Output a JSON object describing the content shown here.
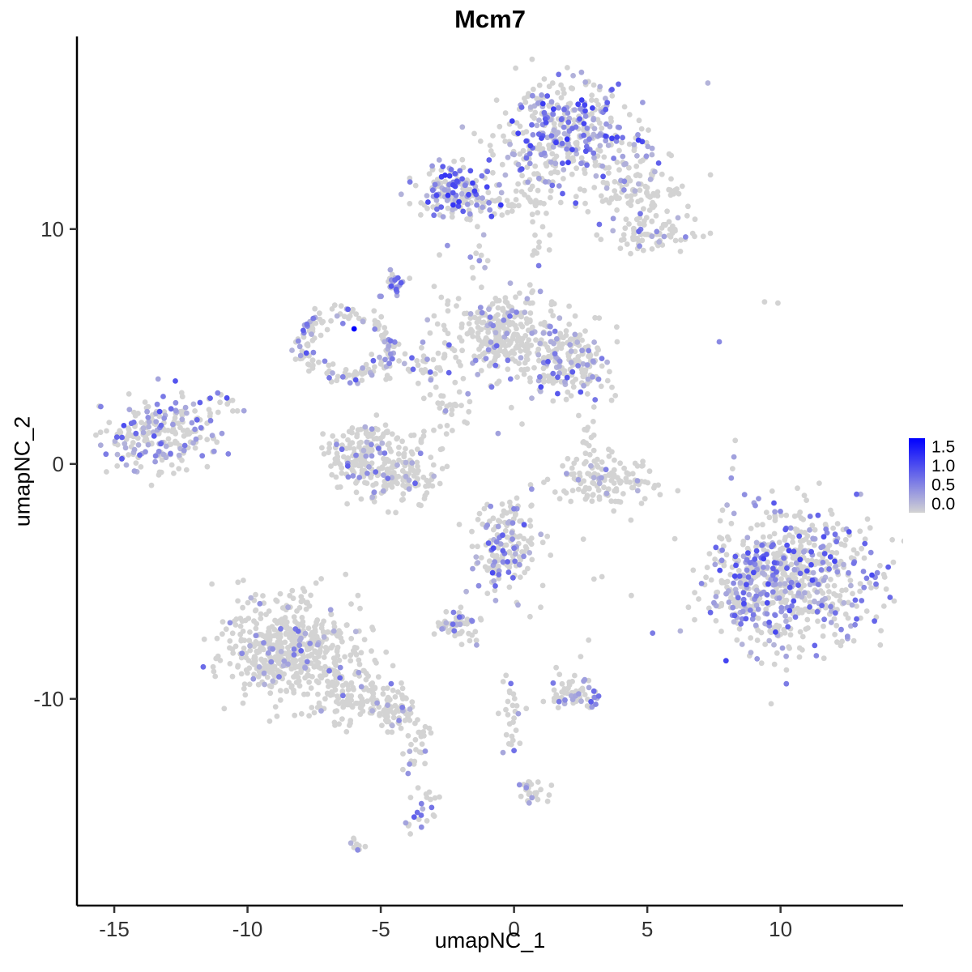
{
  "title": "Mcm7",
  "axes": {
    "x": {
      "label": "umapNC_1",
      "ticks": [
        -15,
        -10,
        -5,
        0,
        5,
        10
      ]
    },
    "y": {
      "label": "umapNC_2",
      "ticks": [
        -10,
        0,
        10
      ]
    }
  },
  "legend": {
    "ticks": [
      "1.5",
      "1.0",
      "0.5",
      "0.0"
    ],
    "vmin": 0.0,
    "vmax": 1.7,
    "color_low": "#D3D3D3",
    "color_high": "#0000FF"
  },
  "panel": {
    "background": "#FFFFFF",
    "axis_color": "#000000",
    "tick_color": "#333333"
  },
  "chart_data": {
    "type": "scatter",
    "title": "Mcm7",
    "xlabel": "umapNC_1",
    "ylabel": "umapNC_2",
    "xlim": [
      -16.4,
      14.6
    ],
    "ylim": [
      -18.8,
      18.2
    ],
    "point_radius": 3.4,
    "value_range": [
      0.0,
      1.7
    ],
    "grid": false,
    "legend_position": "right",
    "clusters": [
      {
        "name": "top-main",
        "cx": 2.0,
        "cy": 14.3,
        "sx": 1.35,
        "sy": 1.05,
        "n": 330,
        "expr_frac": 0.5,
        "vmax": 1.3
      },
      {
        "name": "top-main-fringe",
        "cx": 2.2,
        "cy": 12.6,
        "sx": 1.8,
        "sy": 0.6,
        "n": 90,
        "expr_frac": 0.25,
        "vmax": 1.0
      },
      {
        "name": "top-right-arm",
        "cx": 4.6,
        "cy": 11.5,
        "sx": 0.9,
        "sy": 0.8,
        "n": 90,
        "expr_frac": 0.18,
        "vmax": 1.0
      },
      {
        "name": "top-right-blob",
        "cx": 5.3,
        "cy": 9.7,
        "sx": 0.9,
        "sy": 0.45,
        "n": 70,
        "expr_frac": 0.15,
        "vmax": 1.0
      },
      {
        "name": "top-stem",
        "cx": 1.0,
        "cy": 10.0,
        "sx": 0.3,
        "sy": 1.0,
        "n": 18,
        "expr_frac": 0.1,
        "vmax": 0.8
      },
      {
        "name": "upper-left",
        "cx": -2.2,
        "cy": 11.6,
        "sx": 0.85,
        "sy": 0.55,
        "n": 160,
        "expr_frac": 0.5,
        "vmax": 1.3
      },
      {
        "name": "upper-mid-sparse",
        "cx": 0.2,
        "cy": 11.2,
        "sx": 1.0,
        "sy": 0.35,
        "n": 40,
        "expr_frac": 0.1,
        "vmax": 0.8
      },
      {
        "name": "upper-trail",
        "cx": -1.3,
        "cy": 9.2,
        "sx": 0.25,
        "sy": 0.8,
        "n": 12,
        "expr_frac": 0.2,
        "vmax": 0.8
      },
      {
        "name": "small-upper",
        "cx": -4.5,
        "cy": 7.6,
        "sx": 0.28,
        "sy": 0.3,
        "n": 26,
        "expr_frac": 0.6,
        "vmax": 1.1
      },
      {
        "name": "mid-left-lobe",
        "cx": -0.4,
        "cy": 5.5,
        "sx": 1.0,
        "sy": 0.85,
        "n": 290,
        "expr_frac": 0.12,
        "vmax": 0.9
      },
      {
        "name": "mid-right-lobe",
        "cx": 2.1,
        "cy": 4.3,
        "sx": 0.75,
        "sy": 0.75,
        "n": 190,
        "expr_frac": 0.3,
        "vmax": 1.1
      },
      {
        "name": "ring",
        "cx": -6.3,
        "cy": 5.1,
        "ring": true,
        "rx": 1.55,
        "ry": 1.35,
        "rw": 0.14,
        "n": 150,
        "expr_frac": 0.3,
        "vmax": 1.1
      },
      {
        "name": "ring-arm",
        "cx": -3.4,
        "cy": 4.1,
        "sx": 0.9,
        "sy": 0.5,
        "n": 50,
        "expr_frac": 0.2,
        "vmax": 1.0
      },
      {
        "name": "left",
        "cx": -13.3,
        "cy": 1.1,
        "sx": 1.05,
        "sy": 0.8,
        "n": 230,
        "expr_frac": 0.4,
        "vmax": 1.1
      },
      {
        "name": "left-trail",
        "cx": -11.0,
        "cy": 2.6,
        "sx": 0.7,
        "sy": 0.3,
        "n": 16,
        "expr_frac": 0.25,
        "vmax": 0.9
      },
      {
        "name": "center-arc-left",
        "cx": -5.8,
        "cy": 0.2,
        "sx": 0.55,
        "sy": 0.7,
        "n": 110,
        "expr_frac": 0.15,
        "vmax": 1.0
      },
      {
        "name": "center-arc-right",
        "cx": -4.3,
        "cy": -0.5,
        "sx": 0.75,
        "sy": 0.5,
        "n": 130,
        "expr_frac": 0.12,
        "vmax": 1.0
      },
      {
        "name": "center-arc-top",
        "cx": -4.9,
        "cy": 1.0,
        "sx": 1.0,
        "sy": 0.4,
        "n": 60,
        "expr_frac": 0.1,
        "vmax": 0.8
      },
      {
        "name": "mid-trail",
        "cx": -2.4,
        "cy": 2.3,
        "sx": 0.5,
        "sy": 0.5,
        "n": 25,
        "expr_frac": 0.15,
        "vmax": 0.9
      },
      {
        "name": "right-arc",
        "cx": 3.3,
        "cy": -0.7,
        "sx": 1.0,
        "sy": 0.5,
        "n": 130,
        "expr_frac": 0.08,
        "vmax": 0.8
      },
      {
        "name": "right-arc-top",
        "cx": 2.8,
        "cy": 0.9,
        "sx": 0.4,
        "sy": 0.5,
        "n": 18,
        "expr_frac": 0.1,
        "vmax": 0.8
      },
      {
        "name": "mid-bottom",
        "cx": -0.3,
        "cy": -3.6,
        "sx": 0.6,
        "sy": 0.95,
        "n": 170,
        "expr_frac": 0.35,
        "vmax": 1.1
      },
      {
        "name": "right-big",
        "cx": 10.5,
        "cy": -4.9,
        "sx": 1.55,
        "sy": 1.5,
        "n": 680,
        "expr_frac": 0.35,
        "vmax": 1.2
      },
      {
        "name": "right-big-west",
        "cx": 8.4,
        "cy": -5.3,
        "sx": 0.5,
        "sy": 0.8,
        "n": 60,
        "expr_frac": 0.4,
        "vmax": 1.1
      },
      {
        "name": "bottom-left",
        "cx": -8.4,
        "cy": -7.8,
        "sx": 1.25,
        "sy": 1.15,
        "n": 520,
        "expr_frac": 0.08,
        "vmax": 0.9
      },
      {
        "name": "bottom-left-arm",
        "cx": -5.9,
        "cy": -9.8,
        "sx": 0.9,
        "sy": 0.6,
        "n": 130,
        "expr_frac": 0.08,
        "vmax": 0.9
      },
      {
        "name": "arm-tip",
        "cx": -4.4,
        "cy": -10.6,
        "sx": 0.4,
        "sy": 0.4,
        "n": 50,
        "expr_frac": 0.1,
        "vmax": 0.9
      },
      {
        "name": "below-mid-small",
        "cx": -2.2,
        "cy": -6.9,
        "sx": 0.5,
        "sy": 0.32,
        "n": 55,
        "expr_frac": 0.15,
        "vmax": 0.9
      },
      {
        "name": "small-bottom-right",
        "cx": 2.4,
        "cy": -9.8,
        "sx": 0.55,
        "sy": 0.35,
        "n": 60,
        "expr_frac": 0.3,
        "vmax": 1.0
      },
      {
        "name": "trail-down",
        "cx": -3.8,
        "cy": -12.3,
        "sx": 0.3,
        "sy": 0.8,
        "n": 30,
        "expr_frac": 0.12,
        "vmax": 0.9
      },
      {
        "name": "tiny-lower-1",
        "cx": -3.5,
        "cy": -14.8,
        "sx": 0.3,
        "sy": 0.45,
        "n": 22,
        "expr_frac": 0.4,
        "vmax": 1.0
      },
      {
        "name": "tiny-lower-2",
        "cx": -5.9,
        "cy": -16.2,
        "sx": 0.3,
        "sy": 0.15,
        "n": 10,
        "expr_frac": 0.3,
        "vmax": 0.9
      },
      {
        "name": "mid-lower-trail",
        "cx": -0.1,
        "cy": -10.8,
        "sx": 0.25,
        "sy": 1.2,
        "n": 26,
        "expr_frac": 0.15,
        "vmax": 0.9
      },
      {
        "name": "tiny-lower-3",
        "cx": 0.5,
        "cy": -13.9,
        "sx": 0.35,
        "sy": 0.3,
        "n": 24,
        "expr_frac": 0.3,
        "vmax": 1.0
      }
    ],
    "singles": [
      {
        "x": -6.0,
        "y": 5.75,
        "v": 1.7
      },
      {
        "x": -11.4,
        "y": 2.8,
        "v": 0.9
      },
      {
        "x": 7.7,
        "y": 5.2,
        "v": 0.6
      },
      {
        "x": 9.4,
        "y": 6.9,
        "v": 0.0
      },
      {
        "x": 9.9,
        "y": 6.85,
        "v": 0.0
      },
      {
        "x": 8.3,
        "y": 1.0,
        "v": 0.0
      },
      {
        "x": 8.25,
        "y": 0.3,
        "v": 0.4
      },
      {
        "x": 8.2,
        "y": -0.2,
        "v": 0.0
      },
      {
        "x": 8.15,
        "y": -0.6,
        "v": 0.5
      },
      {
        "x": 5.2,
        "y": -7.2,
        "v": 0.7
      },
      {
        "x": 3.0,
        "y": -4.9,
        "v": 0.0
      },
      {
        "x": 3.3,
        "y": -4.8,
        "v": 0.0
      },
      {
        "x": 2.6,
        "y": -3.2,
        "v": 0.0
      },
      {
        "x": -2.8,
        "y": 8.9,
        "v": 0.0
      },
      {
        "x": -2.5,
        "y": 9.3,
        "v": 0.5
      },
      {
        "x": 3.2,
        "y": 10.2,
        "v": 0.8
      },
      {
        "x": 2.5,
        "y": -8.2,
        "v": 0.0
      },
      {
        "x": 2.8,
        "y": -7.5,
        "v": 0.0
      },
      {
        "x": 0.0,
        "y": -12.2,
        "v": 0.8
      },
      {
        "x": -0.3,
        "y": -9.0,
        "v": 0.0
      },
      {
        "x": 4.4,
        "y": -5.6,
        "v": 0.0
      },
      {
        "x": 1.0,
        "y": -6.1,
        "v": 0.0
      },
      {
        "x": 0.6,
        "y": -6.5,
        "v": 0.0
      },
      {
        "x": 0.1,
        "y": -5.9,
        "v": 0.0
      },
      {
        "x": -0.1,
        "y": 2.4,
        "v": 0.0
      },
      {
        "x": 0.3,
        "y": 1.7,
        "v": 0.0
      },
      {
        "x": -0.6,
        "y": 1.3,
        "v": 0.4
      }
    ]
  }
}
